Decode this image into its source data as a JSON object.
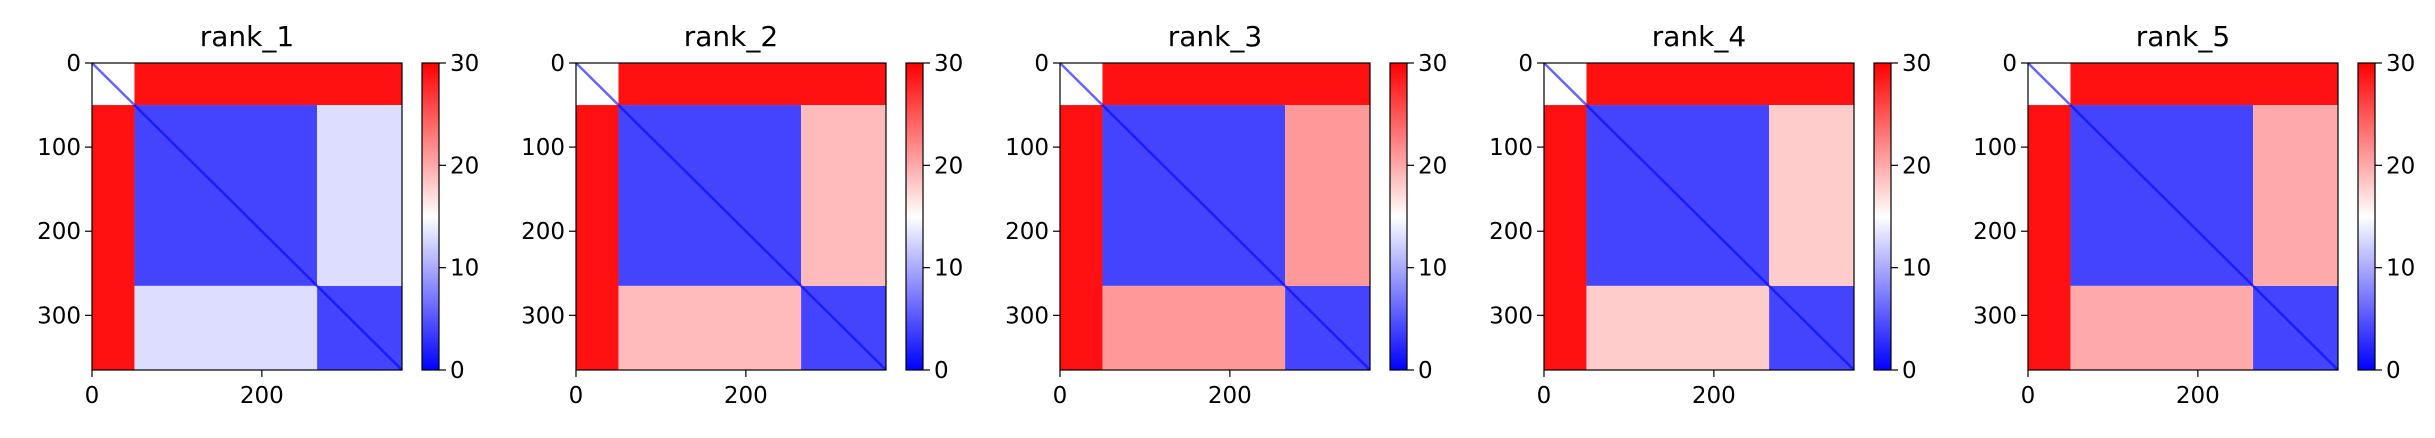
{
  "chart_data": [
    {
      "type": "heatmap",
      "title": "rank_1",
      "x_ticks": [
        0,
        200
      ],
      "y_ticks": [
        0,
        100,
        200,
        300
      ],
      "xlim": [
        0,
        365
      ],
      "ylim": [
        365,
        0
      ],
      "colorbar": {
        "ticks": [
          0,
          10,
          20,
          30
        ],
        "range": [
          0,
          30
        ],
        "colors": [
          "#0000ff",
          "#ffffff",
          "#ff0000"
        ]
      },
      "domains": [
        [
          0,
          50
        ],
        [
          50,
          265
        ],
        [
          265,
          365
        ]
      ],
      "blocks": [
        {
          "rows": [
            0,
            50
          ],
          "cols": [
            50,
            365
          ],
          "value": 29
        },
        {
          "rows": [
            50,
            365
          ],
          "cols": [
            0,
            50
          ],
          "value": 29
        },
        {
          "rows": [
            50,
            265
          ],
          "cols": [
            50,
            265
          ],
          "value": 4
        },
        {
          "rows": [
            265,
            365
          ],
          "cols": [
            265,
            365
          ],
          "value": 4
        },
        {
          "rows": [
            50,
            265
          ],
          "cols": [
            265,
            365
          ],
          "value": 13
        },
        {
          "rows": [
            265,
            365
          ],
          "cols": [
            50,
            265
          ],
          "value": 13
        }
      ]
    },
    {
      "type": "heatmap",
      "title": "rank_2",
      "x_ticks": [
        0,
        200
      ],
      "y_ticks": [
        0,
        100,
        200,
        300
      ],
      "xlim": [
        0,
        365
      ],
      "ylim": [
        365,
        0
      ],
      "colorbar": {
        "ticks": [
          0,
          10,
          20,
          30
        ],
        "range": [
          0,
          30
        ],
        "colors": [
          "#0000ff",
          "#ffffff",
          "#ff0000"
        ]
      },
      "domains": [
        [
          0,
          50
        ],
        [
          50,
          265
        ],
        [
          265,
          365
        ]
      ],
      "blocks": [
        {
          "rows": [
            0,
            50
          ],
          "cols": [
            50,
            365
          ],
          "value": 29
        },
        {
          "rows": [
            50,
            365
          ],
          "cols": [
            0,
            50
          ],
          "value": 29
        },
        {
          "rows": [
            50,
            265
          ],
          "cols": [
            50,
            265
          ],
          "value": 4
        },
        {
          "rows": [
            265,
            365
          ],
          "cols": [
            265,
            365
          ],
          "value": 4
        },
        {
          "rows": [
            50,
            265
          ],
          "cols": [
            265,
            365
          ],
          "value": 19
        },
        {
          "rows": [
            265,
            365
          ],
          "cols": [
            50,
            265
          ],
          "value": 19
        }
      ]
    },
    {
      "type": "heatmap",
      "title": "rank_3",
      "x_ticks": [
        0,
        200
      ],
      "y_ticks": [
        0,
        100,
        200,
        300
      ],
      "xlim": [
        0,
        365
      ],
      "ylim": [
        365,
        0
      ],
      "colorbar": {
        "ticks": [
          0,
          10,
          20,
          30
        ],
        "range": [
          0,
          30
        ],
        "colors": [
          "#0000ff",
          "#ffffff",
          "#ff0000"
        ]
      },
      "domains": [
        [
          0,
          50
        ],
        [
          50,
          265
        ],
        [
          265,
          365
        ]
      ],
      "blocks": [
        {
          "rows": [
            0,
            50
          ],
          "cols": [
            50,
            365
          ],
          "value": 29
        },
        {
          "rows": [
            50,
            365
          ],
          "cols": [
            0,
            50
          ],
          "value": 29
        },
        {
          "rows": [
            50,
            265
          ],
          "cols": [
            50,
            265
          ],
          "value": 4
        },
        {
          "rows": [
            265,
            365
          ],
          "cols": [
            265,
            365
          ],
          "value": 4
        },
        {
          "rows": [
            50,
            265
          ],
          "cols": [
            265,
            365
          ],
          "value": 21
        },
        {
          "rows": [
            265,
            365
          ],
          "cols": [
            50,
            265
          ],
          "value": 21
        }
      ]
    },
    {
      "type": "heatmap",
      "title": "rank_4",
      "x_ticks": [
        0,
        200
      ],
      "y_ticks": [
        0,
        100,
        200,
        300
      ],
      "xlim": [
        0,
        365
      ],
      "ylim": [
        365,
        0
      ],
      "colorbar": {
        "ticks": [
          0,
          10,
          20,
          30
        ],
        "range": [
          0,
          30
        ],
        "colors": [
          "#0000ff",
          "#ffffff",
          "#ff0000"
        ]
      },
      "domains": [
        [
          0,
          50
        ],
        [
          50,
          265
        ],
        [
          265,
          365
        ]
      ],
      "blocks": [
        {
          "rows": [
            0,
            50
          ],
          "cols": [
            50,
            365
          ],
          "value": 29
        },
        {
          "rows": [
            50,
            365
          ],
          "cols": [
            0,
            50
          ],
          "value": 29
        },
        {
          "rows": [
            50,
            265
          ],
          "cols": [
            50,
            265
          ],
          "value": 4
        },
        {
          "rows": [
            265,
            365
          ],
          "cols": [
            265,
            365
          ],
          "value": 4
        },
        {
          "rows": [
            50,
            265
          ],
          "cols": [
            265,
            365
          ],
          "value": 18
        },
        {
          "rows": [
            265,
            365
          ],
          "cols": [
            50,
            265
          ],
          "value": 18
        }
      ]
    },
    {
      "type": "heatmap",
      "title": "rank_5",
      "x_ticks": [
        0,
        200
      ],
      "y_ticks": [
        0,
        100,
        200,
        300
      ],
      "xlim": [
        0,
        365
      ],
      "ylim": [
        365,
        0
      ],
      "colorbar": {
        "ticks": [
          0,
          10,
          20,
          30
        ],
        "range": [
          0,
          30
        ],
        "colors": [
          "#0000ff",
          "#ffffff",
          "#ff0000"
        ]
      },
      "domains": [
        [
          0,
          50
        ],
        [
          50,
          265
        ],
        [
          265,
          365
        ]
      ],
      "blocks": [
        {
          "rows": [
            0,
            50
          ],
          "cols": [
            50,
            365
          ],
          "value": 29
        },
        {
          "rows": [
            50,
            365
          ],
          "cols": [
            0,
            50
          ],
          "value": 29
        },
        {
          "rows": [
            50,
            265
          ],
          "cols": [
            50,
            265
          ],
          "value": 4
        },
        {
          "rows": [
            265,
            365
          ],
          "cols": [
            265,
            365
          ],
          "value": 4
        },
        {
          "rows": [
            50,
            265
          ],
          "cols": [
            265,
            365
          ],
          "value": 20
        },
        {
          "rows": [
            265,
            365
          ],
          "cols": [
            50,
            265
          ],
          "value": 20
        }
      ]
    }
  ]
}
